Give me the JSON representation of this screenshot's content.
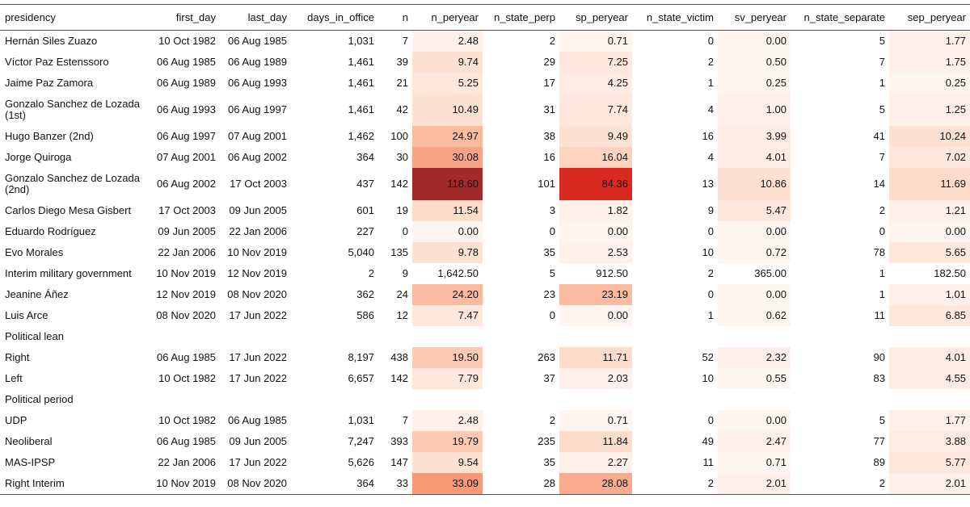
{
  "table": {
    "header": [
      "presidency",
      "first_day",
      "last_day",
      "days_in_office",
      "n",
      "n_peryear",
      "n_state_perp",
      "sp_peryear",
      "n_state_victim",
      "sv_peryear",
      "n_state_separate",
      "sep_peryear"
    ],
    "shaded_columns": [
      5,
      7,
      9,
      11
    ],
    "rows": [
      [
        "Hernán Siles Zuazo",
        "10 Oct 1982",
        "06 Aug 1985",
        "1,031",
        "7",
        "2.48",
        "2",
        "0.71",
        "0",
        "0.00",
        "5",
        "1.77"
      ],
      [
        "Víctor Paz Estenssoro",
        "06 Aug 1985",
        "06 Aug 1989",
        "1,461",
        "39",
        "9.74",
        "29",
        "7.25",
        "2",
        "0.50",
        "7",
        "1.75"
      ],
      [
        "Jaime Paz Zamora",
        "06 Aug 1989",
        "06 Aug 1993",
        "1,461",
        "21",
        "5.25",
        "17",
        "4.25",
        "1",
        "0.25",
        "1",
        "0.25"
      ],
      [
        "Gonzalo Sanchez de Lozada (1st)",
        "06 Aug 1993",
        "06 Aug 1997",
        "1,461",
        "42",
        "10.49",
        "31",
        "7.74",
        "4",
        "1.00",
        "5",
        "1.25"
      ],
      [
        "Hugo Banzer (2nd)",
        "06 Aug 1997",
        "07 Aug 2001",
        "1,462",
        "100",
        "24.97",
        "38",
        "9.49",
        "16",
        "3.99",
        "41",
        "10.24"
      ],
      [
        "Jorge Quiroga",
        "07 Aug 2001",
        "06 Aug 2002",
        "364",
        "30",
        "30.08",
        "16",
        "16.04",
        "4",
        "4.01",
        "7",
        "7.02"
      ],
      [
        "Gonzalo Sanchez de Lozada (2nd)",
        "06 Aug 2002",
        "17 Oct 2003",
        "437",
        "142",
        "118.60",
        "101",
        "84.36",
        "13",
        "10.86",
        "14",
        "11.69"
      ],
      [
        "Carlos Diego Mesa Gisbert",
        "17 Oct 2003",
        "09 Jun 2005",
        "601",
        "19",
        "11.54",
        "3",
        "1.82",
        "9",
        "5.47",
        "2",
        "1.21"
      ],
      [
        "Eduardo Rodríguez",
        "09 Jun 2005",
        "22 Jan 2006",
        "227",
        "0",
        "0.00",
        "0",
        "0.00",
        "0",
        "0.00",
        "0",
        "0.00"
      ],
      [
        "Evo Morales",
        "22 Jan 2006",
        "10 Nov 2019",
        "5,040",
        "135",
        "9.78",
        "35",
        "2.53",
        "10",
        "0.72",
        "78",
        "5.65"
      ],
      [
        "Interim military government",
        "10 Nov 2019",
        "12 Nov 2019",
        "2",
        "9",
        "1,642.50",
        "5",
        "912.50",
        "2",
        "365.00",
        "1",
        "182.50"
      ],
      [
        "Jeanine Áñez",
        "12 Nov 2019",
        "08 Nov 2020",
        "362",
        "24",
        "24.20",
        "23",
        "23.19",
        "0",
        "0.00",
        "1",
        "1.01"
      ],
      [
        "Luis Arce",
        "08 Nov 2020",
        "17 Jun 2022",
        "586",
        "12",
        "7.47",
        "0",
        "0.00",
        "1",
        "0.62",
        "11",
        "6.85"
      ],
      [
        "Political lean"
      ],
      [
        "Right",
        "06 Aug 1985",
        "17 Jun 2022",
        "8,197",
        "438",
        "19.50",
        "263",
        "11.71",
        "52",
        "2.32",
        "90",
        "4.01"
      ],
      [
        "Left",
        "10 Oct 1982",
        "17 Jun 2022",
        "6,657",
        "142",
        "7.79",
        "37",
        "2.03",
        "10",
        "0.55",
        "83",
        "4.55"
      ],
      [
        "Political period"
      ],
      [
        "UDP",
        "10 Oct 1982",
        "06 Aug 1985",
        "1,031",
        "7",
        "2.48",
        "2",
        "0.71",
        "0",
        "0.00",
        "5",
        "1.77"
      ],
      [
        "Neoliberal",
        "06 Aug 1985",
        "09 Jun 2005",
        "7,247",
        "393",
        "19.79",
        "235",
        "11.84",
        "49",
        "2.47",
        "77",
        "3.88"
      ],
      [
        "MAS-IPSP",
        "22 Jan 2006",
        "17 Jun 2022",
        "5,626",
        "147",
        "9.54",
        "35",
        "2.27",
        "11",
        "0.71",
        "89",
        "5.77"
      ],
      [
        "Right Interim",
        "10 Nov 2019",
        "08 Nov 2020",
        "364",
        "33",
        "33.09",
        "28",
        "28.08",
        "2",
        "2.01",
        "2",
        "2.01"
      ]
    ],
    "shading": [
      [
        "#fff1ea",
        "#fff5f0",
        "#fff5f0",
        "#fff1ea"
      ],
      [
        "#fde1d3",
        "#fee7dc",
        "#fff5f0",
        "#fff1ea"
      ],
      [
        "#fee7dc",
        "#feece3",
        "#fff5f0",
        "#fff5f0"
      ],
      [
        "#fde1d3",
        "#fee7dc",
        "#fff1ea",
        "#fff1ea"
      ],
      [
        "#fbbba0",
        "#fde1d3",
        "#feece3",
        "#fde1d3"
      ],
      [
        "#f8a487",
        "#fcd3bf",
        "#feece3",
        "#fee7dc"
      ],
      [
        "#a32a2a",
        "#d92a22",
        "#fde1d3",
        "#fddccc"
      ],
      [
        "#fddccc",
        "#fff1ea",
        "#fee7dc",
        "#fff1ea"
      ],
      [
        "#fff5f0",
        "#fff5f0",
        "#fff5f0",
        "#fff5f0"
      ],
      [
        "#fde1d3",
        "#fff1ea",
        "#fff5f0",
        "#fee7dc"
      ],
      [
        "#ffffff",
        "#ffffff",
        "#ffffff",
        "#ffffff"
      ],
      [
        "#fbbba0",
        "#fbbba0",
        "#fff5f0",
        "#fff1ea"
      ],
      [
        "#fee7dc",
        "#fff5f0",
        "#fff5f0",
        "#fee7dc"
      ],
      null,
      [
        "#fcc9b3",
        "#fddccc",
        "#fff1ea",
        "#feece3"
      ],
      [
        "#fee7dc",
        "#fff1ea",
        "#fff5f0",
        "#feece3"
      ],
      null,
      [
        "#fff1ea",
        "#fff5f0",
        "#fff5f0",
        "#fff1ea"
      ],
      [
        "#fcc9b3",
        "#fddccc",
        "#fff1ea",
        "#feece3"
      ],
      [
        "#fde1d3",
        "#fff1ea",
        "#fff5f0",
        "#fee7dc"
      ],
      [
        "#f79876",
        "#f9ab8e",
        "#fff1ea",
        "#fff1ea"
      ]
    ]
  }
}
